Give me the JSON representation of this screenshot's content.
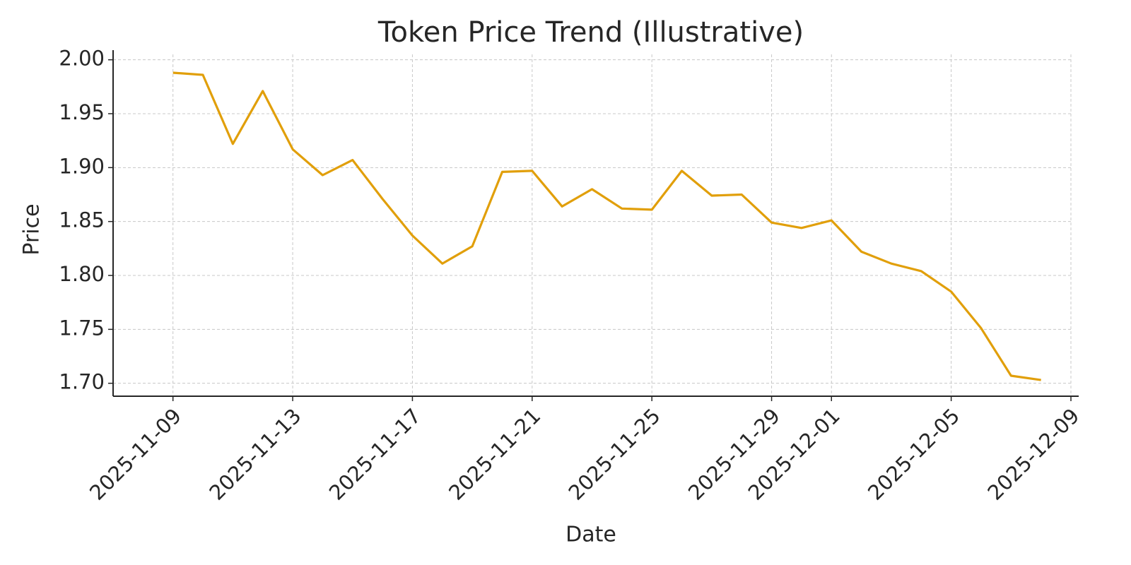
{
  "chart_data": {
    "type": "line",
    "title": "Token Price Trend (Illustrative)",
    "x_label": "Date",
    "y_label": "Price",
    "x": [
      "2025-11-09",
      "2025-11-10",
      "2025-11-11",
      "2025-11-12",
      "2025-11-13",
      "2025-11-14",
      "2025-11-15",
      "2025-11-16",
      "2025-11-17",
      "2025-11-18",
      "2025-11-19",
      "2025-11-20",
      "2025-11-21",
      "2025-11-22",
      "2025-11-23",
      "2025-11-24",
      "2025-11-25",
      "2025-11-26",
      "2025-11-27",
      "2025-11-28",
      "2025-11-29",
      "2025-11-30",
      "2025-12-01",
      "2025-12-02",
      "2025-12-03",
      "2025-12-04",
      "2025-12-05",
      "2025-12-06",
      "2025-12-07",
      "2025-12-08"
    ],
    "series": [
      {
        "name": "Price",
        "color": "#e19f0a",
        "values": [
          1.988,
          1.986,
          1.922,
          1.971,
          1.917,
          1.893,
          1.907,
          1.871,
          1.837,
          1.811,
          1.827,
          1.896,
          1.897,
          1.864,
          1.88,
          1.862,
          1.861,
          1.897,
          1.874,
          1.875,
          1.849,
          1.844,
          1.851,
          1.822,
          1.811,
          1.804,
          1.785,
          1.751,
          1.707,
          1.703
        ]
      }
    ],
    "xlim": [
      "2025-11-07",
      "2025-12-09"
    ],
    "xticks": [
      "2025-11-09",
      "2025-11-13",
      "2025-11-17",
      "2025-11-21",
      "2025-11-25",
      "2025-11-29",
      "2025-12-01",
      "2025-12-05",
      "2025-12-09"
    ],
    "ylim": [
      1.688,
      2.005
    ],
    "yticks": [
      {
        "value": 1.7,
        "label": "1.70"
      },
      {
        "value": 1.75,
        "label": "1.75"
      },
      {
        "value": 1.8,
        "label": "1.80"
      },
      {
        "value": 1.85,
        "label": "1.85"
      },
      {
        "value": 1.9,
        "label": "1.90"
      },
      {
        "value": 1.95,
        "label": "1.95"
      },
      {
        "value": 2.0,
        "label": "2.00"
      }
    ],
    "grid": true
  }
}
